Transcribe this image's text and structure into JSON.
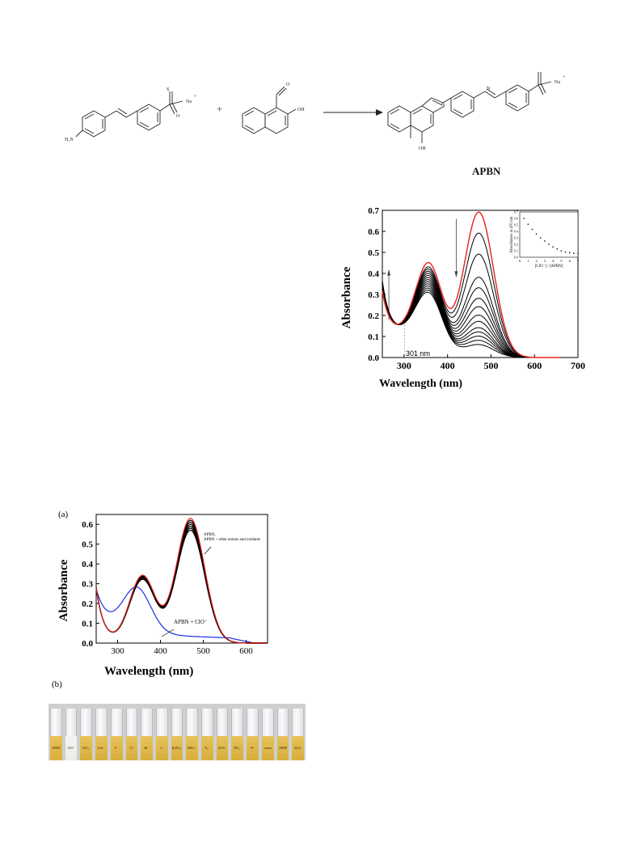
{
  "scheme": {
    "reactant1": {
      "amine_label": "H₂N",
      "cation_label": "Na",
      "cation_charge": "+",
      "sulfonate_o_label": "O",
      "sulfonate_s_label": "S",
      "minus": "-"
    },
    "plus_sign": "+",
    "reactant2": {
      "aldehyde_o_label": "O",
      "hydroxyl_label": "OH"
    },
    "product": {
      "cation_label": "Na",
      "cation_charge": "+",
      "hydroxyl_label": "OH",
      "imine_n_label": "N",
      "azo_n_label": "N",
      "name": "APBN"
    }
  },
  "figure_top": {
    "xlabel": "Wavelength (nm)",
    "ylabel": "Absorbance",
    "annotation": "301 nm",
    "inset": {
      "xlabel": "[ClO⁻] / [APBN]",
      "ylabel": "Absorbance at 470 nm"
    }
  },
  "figure_a": {
    "panel_label": "(a)",
    "xlabel": "Wavelength (nm)",
    "ylabel": "Absorbance",
    "annotation_upper_line1": "APBN,",
    "annotation_upper_line2": "APBN + other anions and oxidants",
    "annotation_lower": "APBN + ClO⁻"
  },
  "figure_b": {
    "panel_label": "(b)",
    "vial_labels": [
      "APBN",
      "ClO⁻",
      "ClO₄⁻",
      "OAc⁻",
      "F⁻",
      "Cl⁻",
      "Br⁻",
      "I⁻",
      "H₂PO₄⁻",
      "HSO₃⁻",
      "N₃⁻",
      "SCN⁻",
      "NO₂⁻",
      "S²⁻",
      "oxone",
      "TBHP",
      "H₂O₂"
    ]
  },
  "chart_data": [
    {
      "type": "line",
      "xlabel": "Wavelength (nm)",
      "ylabel": "Absorbance",
      "xlim": [
        250,
        700
      ],
      "ylim": [
        0.0,
        0.7
      ],
      "xticks": [
        300,
        400,
        500,
        600,
        700
      ],
      "yticks": [
        0.0,
        0.1,
        0.2,
        0.3,
        0.4,
        0.5,
        0.6,
        0.7
      ],
      "annotations": [
        "301 nm"
      ],
      "series_colors": {
        "initial": "#e8211c",
        "titration": "#000000"
      },
      "series": [
        {
          "peak470": 0.69,
          "peak360": 0.38,
          "uv": 0.36,
          "color": "#e8211c"
        },
        {
          "peak470": 0.59,
          "peak360": 0.36,
          "uv": 0.36
        },
        {
          "peak470": 0.49,
          "peak360": 0.35,
          "uv": 0.36
        },
        {
          "peak470": 0.38,
          "peak360": 0.34,
          "uv": 0.37
        },
        {
          "peak470": 0.33,
          "peak360": 0.33,
          "uv": 0.37
        },
        {
          "peak470": 0.28,
          "peak360": 0.32,
          "uv": 0.37
        },
        {
          "peak470": 0.24,
          "peak360": 0.31,
          "uv": 0.38
        },
        {
          "peak470": 0.2,
          "peak360": 0.3,
          "uv": 0.38
        },
        {
          "peak470": 0.17,
          "peak360": 0.29,
          "uv": 0.38
        },
        {
          "peak470": 0.14,
          "peak360": 0.28,
          "uv": 0.39
        },
        {
          "peak470": 0.12,
          "peak360": 0.27,
          "uv": 0.39
        },
        {
          "peak470": 0.1,
          "peak360": 0.26,
          "uv": 0.4
        },
        {
          "peak470": 0.08,
          "peak360": 0.25,
          "uv": 0.4
        },
        {
          "peak470": 0.06,
          "peak360": 0.24,
          "uv": 0.41
        }
      ],
      "inset": {
        "type": "scatter",
        "xlabel": "[ClO⁻] / [APBN]",
        "ylabel": "Absorbance at 470 nm",
        "xlim": [
          0,
          7
        ],
        "ylim": [
          0.0,
          0.7
        ],
        "xticks": [
          0,
          1,
          2,
          3,
          4,
          5,
          6,
          7
        ],
        "yticks": [
          0.0,
          0.1,
          0.2,
          0.3,
          0.4,
          0.5,
          0.6,
          0.7
        ],
        "x": [
          0.5,
          1.0,
          1.5,
          2.0,
          2.5,
          3.0,
          3.5,
          4.0,
          4.5,
          5.0,
          5.5,
          6.0,
          6.5,
          7.0
        ],
        "y": [
          0.6,
          0.51,
          0.43,
          0.36,
          0.3,
          0.25,
          0.2,
          0.16,
          0.13,
          0.1,
          0.08,
          0.07,
          0.06,
          0.06
        ]
      }
    },
    {
      "type": "line",
      "xlabel": "Wavelength (nm)",
      "ylabel": "Absorbance",
      "xlim": [
        250,
        650
      ],
      "ylim": [
        0.0,
        0.65
      ],
      "xticks": [
        300,
        400,
        500,
        600
      ],
      "yticks": [
        0.0,
        0.1,
        0.2,
        0.3,
        0.4,
        0.5,
        0.6
      ],
      "series_colors": {
        "apbn": "#e8211c",
        "others": "#000000",
        "clo": "#1a2ee6"
      },
      "series": [
        {
          "peak470": 0.63,
          "peak360": 0.34,
          "color": "#e8211c"
        },
        {
          "peak470": 0.62,
          "peak360": 0.34
        },
        {
          "peak470": 0.61,
          "peak360": 0.335
        },
        {
          "peak470": 0.6,
          "peak360": 0.33
        },
        {
          "peak470": 0.59,
          "peak360": 0.33
        },
        {
          "peak470": 0.58,
          "peak360": 0.325
        },
        {
          "peak470": 0.57,
          "peak360": 0.32
        },
        {
          "name": "APBN + ClO⁻",
          "color": "#1a2ee6",
          "peak340": 0.26,
          "at300": 0.23,
          "at400": 0.1,
          "at500": 0.03
        }
      ]
    }
  ]
}
